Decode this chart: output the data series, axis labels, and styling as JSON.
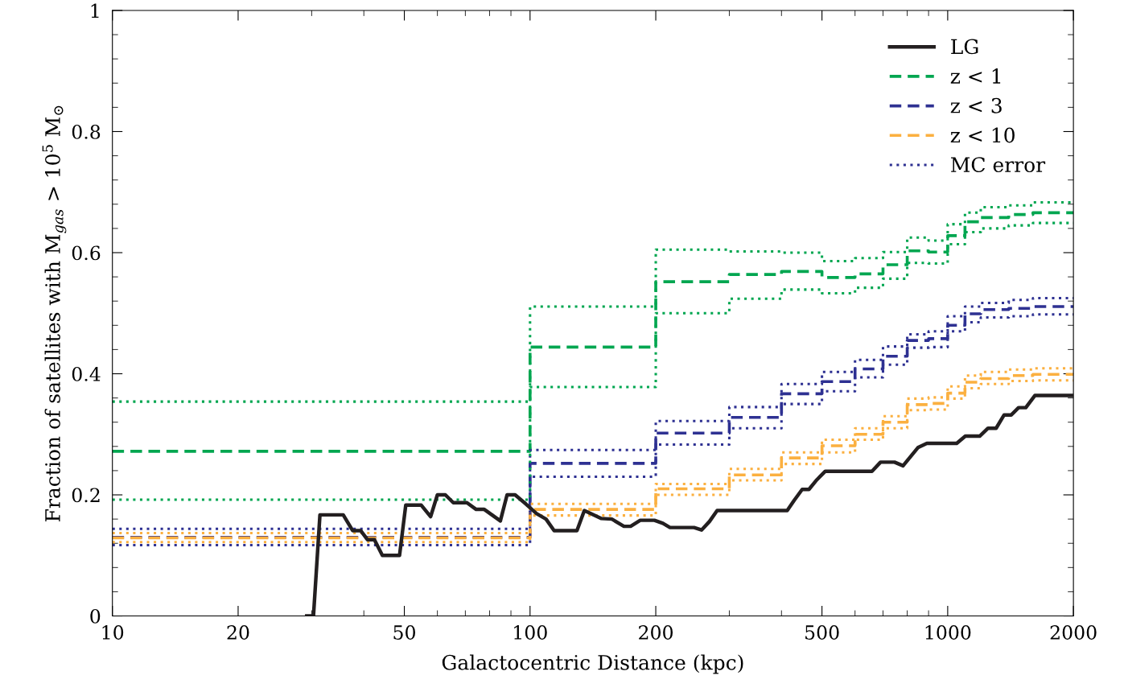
{
  "chart_data": {
    "type": "line",
    "xlabel": "Galactocentric Distance (kpc)",
    "ylabel": "Fraction of satellites with M$_{gas}$ > 10$^{5}$ M$_{⊙}$",
    "log": "x",
    "xlim": [
      10,
      2000
    ],
    "xticks": [
      10,
      20,
      50,
      100,
      200,
      500,
      1000,
      2000
    ],
    "ylim": [
      0,
      1
    ],
    "yticks": [
      0,
      0.2,
      0.4,
      0.6,
      0.8,
      1
    ],
    "grid": false,
    "legend": "top right",
    "marker": "none",
    "series": [
      {
        "name": "LG",
        "line_style": "solid",
        "color": "#231f20",
        "x": [
          29.2,
          30.3,
          31.4,
          35.7,
          37.6,
          39.3,
          40.8,
          42.4,
          44.3,
          48.7,
          50.4,
          54.9,
          57.8,
          60.0,
          62.7,
          65.5,
          70.6,
          74.3,
          77.7,
          84.9,
          88.1,
          92.1,
          97.7,
          103.7,
          109.2,
          114.2,
          129.5,
          134.9,
          147.9,
          157,
          167.8,
          174.1,
          183.6,
          198.5,
          208,
          216.3,
          247,
          257.4,
          268.9,
          280.5,
          412.8,
          429.1,
          448.3,
          465.3,
          486.2,
          509.3,
          658.7,
          690.6,
          745.9,
          781.8,
          848.5,
          891.5,
          1051,
          1102,
          1193,
          1249,
          1306,
          1365,
          1420,
          1478,
          1538,
          1617,
          2000
        ],
        "values": [
          0,
          0,
          0.167,
          0.167,
          0.141,
          0.141,
          0.126,
          0.126,
          0.1,
          0.1,
          0.183,
          0.183,
          0.164,
          0.2,
          0.2,
          0.187,
          0.187,
          0.176,
          0.176,
          0.157,
          0.2,
          0.2,
          0.185,
          0.169,
          0.16,
          0.141,
          0.141,
          0.174,
          0.161,
          0.16,
          0.148,
          0.148,
          0.158,
          0.158,
          0.153,
          0.146,
          0.146,
          0.142,
          0.156,
          0.174,
          0.174,
          0.191,
          0.209,
          0.209,
          0.225,
          0.239,
          0.239,
          0.254,
          0.254,
          0.248,
          0.278,
          0.285,
          0.285,
          0.297,
          0.297,
          0.31,
          0.31,
          0.332,
          0.332,
          0.344,
          0.344,
          0.364,
          0.364
        ]
      },
      {
        "name": "z < 1",
        "type": "step",
        "line_style": "dashed",
        "color": "#00a650",
        "x": [
          10,
          100,
          200,
          300,
          400,
          500,
          600,
          700,
          800,
          900,
          1000,
          1100,
          1200,
          1400,
          1600,
          2000
        ],
        "values": [
          0.272,
          0.444,
          0.552,
          0.564,
          0.569,
          0.559,
          0.565,
          0.58,
          0.603,
          0.601,
          0.628,
          0.651,
          0.658,
          0.663,
          0.666,
          0.666
        ]
      },
      {
        "name": "z < 3",
        "type": "step",
        "line_style": "dashed",
        "color": "#2e3192",
        "x": [
          10,
          100,
          200,
          300,
          400,
          500,
          600,
          700,
          800,
          900,
          1000,
          1100,
          1200,
          1400,
          1600,
          2000
        ],
        "values": [
          0.13,
          0.252,
          0.302,
          0.328,
          0.367,
          0.387,
          0.408,
          0.429,
          0.455,
          0.458,
          0.48,
          0.499,
          0.506,
          0.508,
          0.511,
          0.511
        ]
      },
      {
        "name": "z < 10",
        "type": "step",
        "line_style": "dashed",
        "color": "#fbb040",
        "x": [
          10,
          100,
          200,
          300,
          400,
          500,
          600,
          700,
          800,
          900,
          1000,
          1100,
          1200,
          1400,
          1600,
          2000
        ],
        "values": [
          0.129,
          0.176,
          0.21,
          0.233,
          0.261,
          0.281,
          0.3,
          0.32,
          0.349,
          0.351,
          0.368,
          0.386,
          0.392,
          0.397,
          0.399,
          0.399
        ]
      },
      {
        "name": "MC error",
        "type": "step",
        "line_style": "dotted",
        "color": "#2e3192",
        "x": [
          10,
          100,
          200,
          300,
          400,
          500,
          600,
          700,
          800,
          900,
          1000,
          1100,
          1200,
          1400,
          1600,
          2000
        ],
        "values": [
          0.144,
          0.274,
          0.322,
          0.345,
          0.383,
          0.403,
          0.423,
          0.445,
          0.465,
          0.47,
          0.495,
          0.511,
          0.517,
          0.522,
          0.525,
          0.525
        ]
      },
      {
        "type": "step",
        "line_style": "dotted",
        "color": "#2e3192",
        "x": [
          10,
          100,
          200,
          300,
          400,
          500,
          600,
          700,
          800,
          900,
          1000,
          1100,
          1200,
          1400,
          1600,
          2000
        ],
        "values": [
          0.117,
          0.23,
          0.283,
          0.31,
          0.35,
          0.371,
          0.394,
          0.415,
          0.443,
          0.444,
          0.47,
          0.485,
          0.493,
          0.495,
          0.498,
          0.498
        ]
      },
      {
        "type": "step",
        "line_style": "dotted",
        "color": "#00a650",
        "x": [
          10,
          100,
          200,
          300,
          400,
          500,
          600,
          700,
          800,
          900,
          1000,
          1100,
          1200,
          1400,
          1600,
          2000
        ],
        "values": [
          0.354,
          0.511,
          0.605,
          0.602,
          0.6,
          0.586,
          0.591,
          0.601,
          0.625,
          0.62,
          0.647,
          0.666,
          0.675,
          0.678,
          0.683,
          0.683
        ]
      },
      {
        "type": "step",
        "line_style": "dotted",
        "color": "#00a650",
        "x": [
          10,
          100,
          200,
          300,
          400,
          500,
          600,
          700,
          800,
          900,
          1000,
          1100,
          1200,
          1400,
          1600,
          2000
        ],
        "values": [
          0.192,
          0.378,
          0.5,
          0.524,
          0.539,
          0.533,
          0.542,
          0.557,
          0.583,
          0.582,
          0.614,
          0.634,
          0.64,
          0.645,
          0.649,
          0.649
        ]
      },
      {
        "type": "step",
        "line_style": "dotted",
        "color": "#fbb040",
        "x": [
          10,
          100,
          200,
          300,
          400,
          500,
          600,
          700,
          800,
          900,
          1000,
          1100,
          1200,
          1400,
          1600,
          2000
        ],
        "values": [
          0.137,
          0.185,
          0.218,
          0.243,
          0.27,
          0.291,
          0.31,
          0.33,
          0.359,
          0.361,
          0.379,
          0.397,
          0.403,
          0.407,
          0.409,
          0.409
        ]
      },
      {
        "type": "step",
        "line_style": "dotted",
        "color": "#fbb040",
        "x": [
          10,
          100,
          200,
          300,
          400,
          500,
          600,
          700,
          800,
          900,
          1000,
          1100,
          1200,
          1400,
          1600,
          2000
        ],
        "values": [
          0.122,
          0.166,
          0.2,
          0.224,
          0.251,
          0.27,
          0.291,
          0.31,
          0.34,
          0.341,
          0.359,
          0.376,
          0.383,
          0.388,
          0.389,
          0.389
        ]
      }
    ]
  }
}
